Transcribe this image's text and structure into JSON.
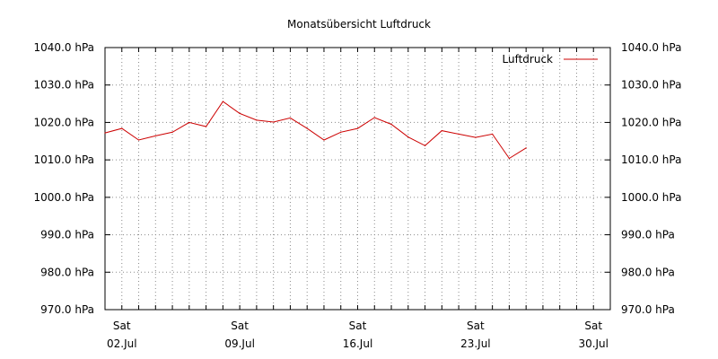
{
  "chart_data": {
    "type": "line",
    "title": "Monatsübersicht Luftdruck",
    "xlabel": "",
    "ylabel": "",
    "grid": true,
    "legend_position": "top-right",
    "ylim": [
      970,
      1040
    ],
    "xlim": [
      "2023-07-01",
      "2023-07-31"
    ],
    "y_ticks": [
      "970.0 hPa",
      "980.0 hPa",
      "990.0 hPa",
      "1000.0 hPa",
      "1010.0 hPa",
      "1020.0 hPa",
      "1030.0 hPa",
      "1040.0 hPa"
    ],
    "x_ticks": [
      {
        "day": "Sat",
        "date": "02.Jul"
      },
      {
        "day": "Sat",
        "date": "09.Jul"
      },
      {
        "day": "Sat",
        "date": "16.Jul"
      },
      {
        "day": "Sat",
        "date": "23.Jul"
      },
      {
        "day": "Sat",
        "date": "30.Jul"
      }
    ],
    "series": [
      {
        "name": "Luftdruck",
        "color": "#cc0000",
        "x": [
          "2023-07-01",
          "2023-07-02",
          "2023-07-03",
          "2023-07-04",
          "2023-07-05",
          "2023-07-06",
          "2023-07-07",
          "2023-07-08",
          "2023-07-09",
          "2023-07-10",
          "2023-07-11",
          "2023-07-12",
          "2023-07-13",
          "2023-07-14",
          "2023-07-15",
          "2023-07-16",
          "2023-07-17",
          "2023-07-18",
          "2023-07-19",
          "2023-07-20",
          "2023-07-21",
          "2023-07-22",
          "2023-07-23",
          "2023-07-24",
          "2023-07-25",
          "2023-07-26"
        ],
        "values": [
          1017.2,
          1018.4,
          1015.3,
          1016.4,
          1017.4,
          1020.0,
          1018.9,
          1025.6,
          1022.4,
          1020.6,
          1020.1,
          1021.2,
          1018.4,
          1015.3,
          1017.4,
          1018.4,
          1021.3,
          1019.5,
          1016.1,
          1013.8,
          1017.8,
          1016.9,
          1016.0,
          1016.9,
          1010.4,
          1013.2
        ]
      }
    ]
  }
}
